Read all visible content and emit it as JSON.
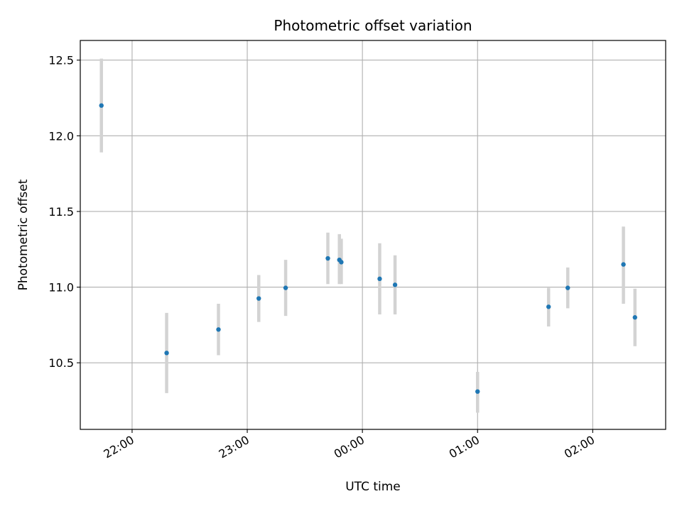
{
  "chart_data": {
    "type": "scatter",
    "title": "Photometric offset variation",
    "xlabel": "UTC time",
    "ylabel": "Photometric offset",
    "x_axis_type": "time",
    "xlim": [
      "21:33",
      "02:38"
    ],
    "ylim": [
      10.06,
      12.63
    ],
    "grid": true,
    "legend": "none",
    "x_ticks": [
      "22:00",
      "23:00",
      "00:00",
      "01:00",
      "02:00"
    ],
    "y_ticks": [
      "10.5",
      "11.0",
      "11.5",
      "12.0",
      "12.5"
    ],
    "point_color": "#1f77b4",
    "errorbar_color": "#d3d3d3",
    "points": [
      {
        "t": "21:44",
        "y": 12.2,
        "err_low": 11.89,
        "err_high": 12.51
      },
      {
        "t": "22:18",
        "y": 10.565,
        "err_low": 10.3,
        "err_high": 10.83
      },
      {
        "t": "22:45",
        "y": 10.72,
        "err_low": 10.55,
        "err_high": 10.89
      },
      {
        "t": "23:06",
        "y": 10.925,
        "err_low": 10.77,
        "err_high": 11.08
      },
      {
        "t": "23:20",
        "y": 10.995,
        "err_low": 10.81,
        "err_high": 11.18
      },
      {
        "t": "23:42",
        "y": 11.19,
        "err_low": 11.02,
        "err_high": 11.36
      },
      {
        "t": "23:48",
        "y": 11.18,
        "err_low": 11.02,
        "err_high": 11.35
      },
      {
        "t": "23:49",
        "y": 11.165,
        "err_low": 11.02,
        "err_high": 11.32
      },
      {
        "t": "00:09",
        "y": 11.055,
        "err_low": 10.82,
        "err_high": 11.29
      },
      {
        "t": "00:17",
        "y": 11.015,
        "err_low": 10.82,
        "err_high": 11.21
      },
      {
        "t": "01:00",
        "y": 10.31,
        "err_low": 10.17,
        "err_high": 10.44
      },
      {
        "t": "01:37",
        "y": 10.87,
        "err_low": 10.74,
        "err_high": 10.995
      },
      {
        "t": "01:47",
        "y": 10.995,
        "err_low": 10.86,
        "err_high": 11.13
      },
      {
        "t": "02:16",
        "y": 11.15,
        "err_low": 10.89,
        "err_high": 11.4
      },
      {
        "t": "02:22",
        "y": 10.8,
        "err_low": 10.61,
        "err_high": 10.99
      }
    ]
  }
}
